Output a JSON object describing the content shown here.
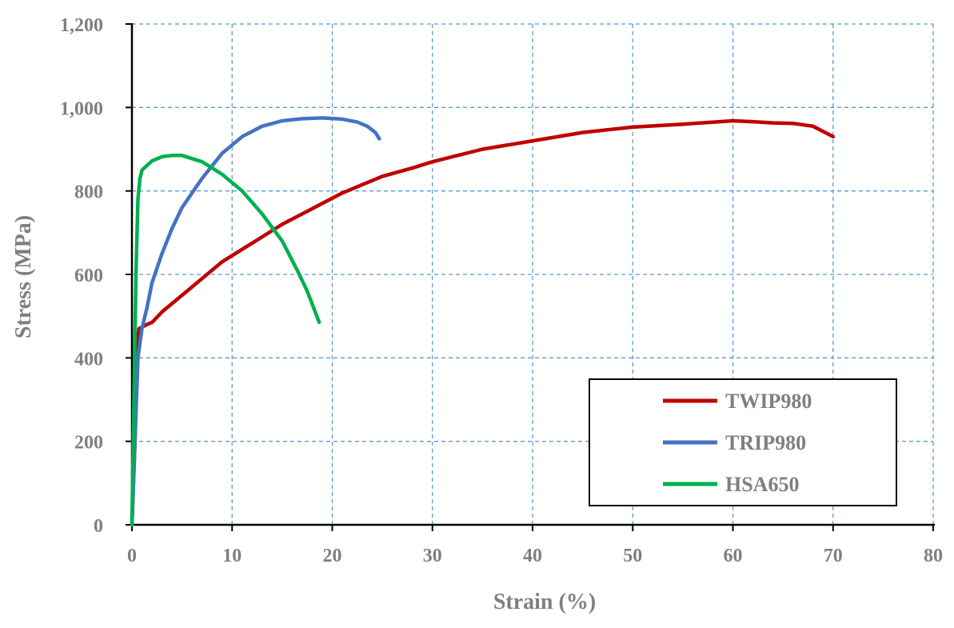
{
  "chart_data": {
    "type": "line",
    "title": "",
    "xlabel": "Strain (%)",
    "ylabel": "Stress (MPa)",
    "xlim": [
      0,
      80
    ],
    "ylim": [
      0,
      1200
    ],
    "x_ticks": [
      "0",
      "10",
      "20",
      "30",
      "40",
      "50",
      "60",
      "70",
      "80"
    ],
    "y_ticks": [
      "0",
      "200",
      "400",
      "600",
      "800",
      "1,000",
      "1,200"
    ],
    "grid": true,
    "grid_color": "#5b9bd5",
    "legend_position": "bottom-right",
    "series": [
      {
        "name": "TWIP980",
        "color": "#c00000",
        "points": [
          [
            0,
            0
          ],
          [
            0.3,
            200
          ],
          [
            0.5,
            420
          ],
          [
            0.7,
            470
          ],
          [
            1.5,
            480
          ],
          [
            2,
            485
          ],
          [
            3,
            510
          ],
          [
            5,
            550
          ],
          [
            7,
            590
          ],
          [
            9,
            630
          ],
          [
            11,
            660
          ],
          [
            13,
            690
          ],
          [
            15,
            720
          ],
          [
            17,
            745
          ],
          [
            19,
            770
          ],
          [
            21,
            795
          ],
          [
            23,
            815
          ],
          [
            25,
            835
          ],
          [
            28,
            855
          ],
          [
            30,
            870
          ],
          [
            35,
            900
          ],
          [
            40,
            920
          ],
          [
            45,
            940
          ],
          [
            50,
            953
          ],
          [
            55,
            960
          ],
          [
            60,
            968
          ],
          [
            62,
            966
          ],
          [
            64,
            963
          ],
          [
            66,
            962
          ],
          [
            68,
            955
          ],
          [
            70,
            930
          ]
        ]
      },
      {
        "name": "TRIP980",
        "color": "#4472c4",
        "points": [
          [
            0,
            0
          ],
          [
            0.3,
            200
          ],
          [
            0.6,
            400
          ],
          [
            1,
            470
          ],
          [
            1.5,
            520
          ],
          [
            2,
            580
          ],
          [
            3,
            650
          ],
          [
            4,
            710
          ],
          [
            5,
            760
          ],
          [
            7,
            830
          ],
          [
            9,
            890
          ],
          [
            11,
            930
          ],
          [
            13,
            955
          ],
          [
            15,
            968
          ],
          [
            17,
            973
          ],
          [
            19,
            975
          ],
          [
            21,
            972
          ],
          [
            22.5,
            965
          ],
          [
            23.5,
            955
          ],
          [
            24.3,
            940
          ],
          [
            24.7,
            925
          ]
        ]
      },
      {
        "name": "HSA650",
        "color": "#00b050",
        "points": [
          [
            0,
            0
          ],
          [
            0.2,
            300
          ],
          [
            0.4,
            600
          ],
          [
            0.6,
            780
          ],
          [
            0.8,
            830
          ],
          [
            1,
            850
          ],
          [
            2,
            872
          ],
          [
            3,
            882
          ],
          [
            4,
            885
          ],
          [
            5,
            885
          ],
          [
            7,
            870
          ],
          [
            9,
            840
          ],
          [
            11,
            800
          ],
          [
            13,
            745
          ],
          [
            15,
            680
          ],
          [
            16.5,
            610
          ],
          [
            17.5,
            560
          ],
          [
            18.3,
            510
          ],
          [
            18.7,
            485
          ]
        ]
      }
    ]
  }
}
